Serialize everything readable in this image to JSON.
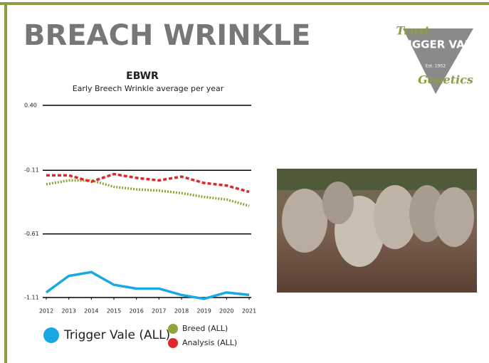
{
  "header": {
    "title": "BREACH WRINKLE"
  },
  "logo": {
    "top": "Trust",
    "name": "TRIGGER VALE",
    "est": "Est. 1952",
    "bottom": "Genetics"
  },
  "chart_data": {
    "type": "line",
    "title": "EBWR",
    "subtitle": "Early Breech Wrinkle average per year",
    "x": [
      2012,
      2013,
      2014,
      2015,
      2016,
      2017,
      2018,
      2019,
      2020,
      2021
    ],
    "xlim": [
      2012,
      2021
    ],
    "xticks": [
      2012,
      2013,
      2014,
      2015,
      2016,
      2017,
      2018,
      2019,
      2020,
      2021
    ],
    "ylim": [
      -1.11,
      0.4
    ],
    "yticks": [
      {
        "value": 0.4,
        "label": "0.40"
      },
      -0.11,
      -0.61,
      -1.11
    ],
    "grid": true,
    "series": [
      {
        "name": "Trigger Vale (ALL)",
        "color": "#1aa7e6",
        "style": "solid",
        "values": [
          -1.07,
          -0.94,
          -0.91,
          -1.01,
          -1.04,
          -1.04,
          -1.09,
          -1.12,
          -1.07,
          -1.09
        ]
      },
      {
        "name": "Breed (ALL)",
        "color": "#8da43a",
        "style": "dotted",
        "values": [
          -0.22,
          -0.19,
          -0.19,
          -0.24,
          -0.26,
          -0.27,
          -0.29,
          -0.32,
          -0.34,
          -0.39
        ]
      },
      {
        "name": "Analysis (ALL)",
        "color": "#e0262b",
        "style": "dashed",
        "values": [
          -0.15,
          -0.15,
          -0.2,
          -0.14,
          -0.17,
          -0.19,
          -0.16,
          -0.21,
          -0.23,
          -0.28
        ]
      }
    ]
  }
}
